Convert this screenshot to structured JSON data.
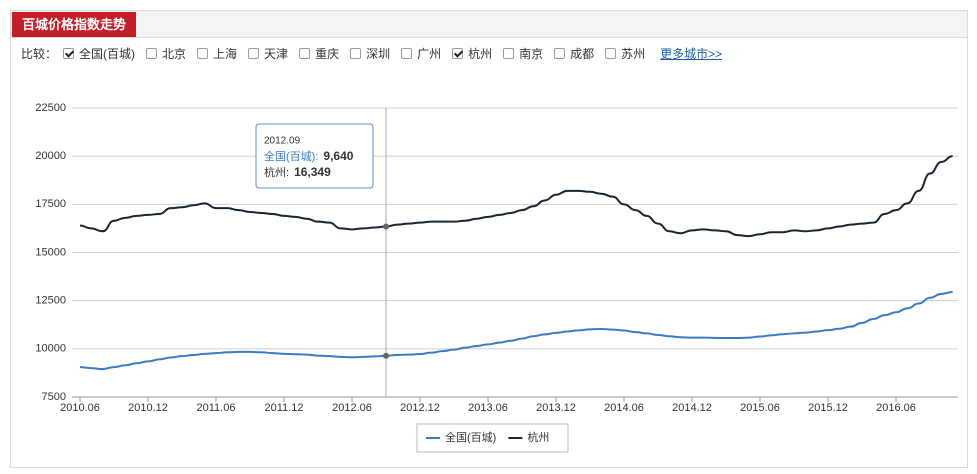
{
  "header": {
    "title": "百城价格指数走势"
  },
  "filters": {
    "label": "比较：",
    "options": [
      {
        "label": "全国(百城)",
        "checked": true
      },
      {
        "label": "北京",
        "checked": false
      },
      {
        "label": "上海",
        "checked": false
      },
      {
        "label": "天津",
        "checked": false
      },
      {
        "label": "重庆",
        "checked": false
      },
      {
        "label": "深圳",
        "checked": false
      },
      {
        "label": "广州",
        "checked": false
      },
      {
        "label": "杭州",
        "checked": true
      },
      {
        "label": "南京",
        "checked": false
      },
      {
        "label": "成都",
        "checked": false
      },
      {
        "label": "苏州",
        "checked": false
      }
    ],
    "more": "更多城市>>"
  },
  "chart_data": {
    "type": "line",
    "categories": [
      "2010.06",
      null,
      null,
      null,
      null,
      null,
      "2010.12",
      null,
      null,
      null,
      null,
      null,
      "2011.06",
      null,
      null,
      null,
      null,
      null,
      "2011.12",
      null,
      null,
      null,
      null,
      null,
      "2012.06",
      null,
      null,
      null,
      null,
      null,
      "2012.12",
      null,
      null,
      null,
      null,
      null,
      "2013.06",
      null,
      null,
      null,
      null,
      null,
      "2013.12",
      null,
      null,
      null,
      null,
      null,
      "2014.06",
      null,
      null,
      null,
      null,
      null,
      "2014.12",
      null,
      null,
      null,
      null,
      null,
      "2015.06",
      null,
      null,
      null,
      null,
      null,
      "2015.12",
      null,
      null,
      null,
      null,
      null,
      "2016.06",
      null,
      null,
      null,
      null,
      null
    ],
    "series": [
      {
        "name": "全国(百城)",
        "color": "#3a7cc4",
        "values": [
          9050,
          9000,
          8950,
          9050,
          9150,
          9250,
          9350,
          9450,
          9550,
          9620,
          9680,
          9740,
          9780,
          9820,
          9840,
          9840,
          9820,
          9780,
          9740,
          9720,
          9700,
          9650,
          9620,
          9580,
          9560,
          9580,
          9610,
          9640,
          9680,
          9700,
          9730,
          9800,
          9880,
          9960,
          10060,
          10150,
          10230,
          10320,
          10420,
          10530,
          10650,
          10750,
          10830,
          10900,
          10960,
          11010,
          11030,
          11000,
          10950,
          10870,
          10800,
          10720,
          10650,
          10600,
          10580,
          10580,
          10570,
          10560,
          10560,
          10580,
          10640,
          10700,
          10760,
          10800,
          10840,
          10900,
          10970,
          11040,
          11150,
          11350,
          11550,
          11750,
          11900,
          12100,
          12350,
          12650,
          12850,
          12950
        ]
      },
      {
        "name": "杭州",
        "color": "#1a2530",
        "values": [
          16400,
          16250,
          16100,
          16650,
          16800,
          16900,
          16950,
          17000,
          17300,
          17350,
          17450,
          17550,
          17300,
          17300,
          17200,
          17100,
          17050,
          17000,
          16900,
          16850,
          16750,
          16600,
          16550,
          16250,
          16200,
          16250,
          16300,
          16349,
          16450,
          16500,
          16550,
          16600,
          16600,
          16600,
          16650,
          16750,
          16850,
          16950,
          17050,
          17200,
          17400,
          17700,
          18000,
          18200,
          18200,
          18150,
          18050,
          17900,
          17500,
          17200,
          16900,
          16500,
          16100,
          16000,
          16150,
          16200,
          16150,
          16100,
          15900,
          15850,
          15950,
          16050,
          16050,
          16150,
          16100,
          16150,
          16250,
          16350,
          16450,
          16500,
          16550,
          17000,
          17200,
          17550,
          18200,
          19100,
          19700,
          20000
        ]
      }
    ],
    "ylim": [
      7500,
      22500
    ],
    "yticks": [
      7500,
      10000,
      12500,
      15000,
      17500,
      20000,
      22500
    ],
    "grid": true,
    "legend": "bottom",
    "tooltip": {
      "x": "2012.09",
      "values": [
        {
          "name": "全国(百城):",
          "value": 9640,
          "label": "9,640"
        },
        {
          "name": "杭州:",
          "value": 16349,
          "label": "16,349"
        }
      ]
    }
  }
}
